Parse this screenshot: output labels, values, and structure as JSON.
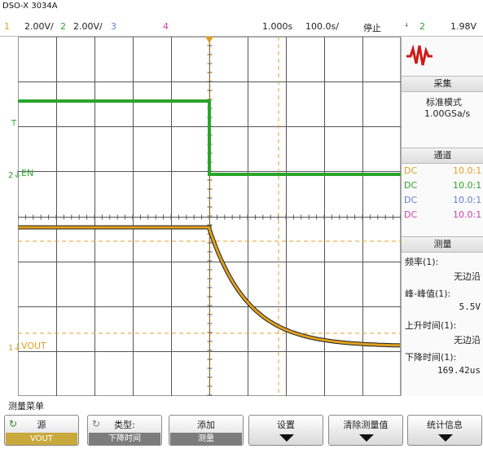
{
  "model": "DSO-X 3034A",
  "channels": [
    {
      "num": "1",
      "scale": "2.00V/",
      "color": "#e0a020"
    },
    {
      "num": "2",
      "scale": "2.00V/",
      "color": "#2aa52a"
    },
    {
      "num": "3",
      "scale": "",
      "color": "#6a7fd0"
    },
    {
      "num": "4",
      "scale": "",
      "color": "#d03db0"
    }
  ],
  "timebase": {
    "delay": "1.000s",
    "scale": "100.0s/"
  },
  "run_status": "停止",
  "trigger": {
    "slope_icon": "trigger-edge-icon",
    "source": "2",
    "level": "1.98V"
  },
  "trace_labels": {
    "en": "EN",
    "vout": "VOUT",
    "ch2_marker": "2",
    "ch1_marker": "1",
    "trig_marker": "T"
  },
  "colors": {
    "ch1": "#e0a020",
    "ch2": "#2aa52a",
    "ch3": "#6a7fd0",
    "ch4": "#d03db0",
    "logo": "#d01818"
  },
  "side_panel": {
    "acquire": {
      "title": "采集",
      "mode": "标准模式",
      "rate": "1.00GSa/s"
    },
    "channels": {
      "title": "通道",
      "rows": [
        {
          "coupling": "DC",
          "ratio": "10.0:1"
        },
        {
          "coupling": "DC",
          "ratio": "10.0:1"
        },
        {
          "coupling": "DC",
          "ratio": "10.0:1"
        },
        {
          "coupling": "DC",
          "ratio": "10.0:1"
        }
      ]
    },
    "measure": {
      "title": "测量",
      "items": [
        {
          "label": "频率(1):",
          "value": "无边沿"
        },
        {
          "label": "峰-峰值(1):",
          "value": "5.5V"
        },
        {
          "label": "上升时间(1):",
          "value": "无边沿"
        },
        {
          "label": "下降时间(1):",
          "value": "169.42us"
        }
      ]
    }
  },
  "menu_title": "测量菜单",
  "softkeys": [
    {
      "line1": "源",
      "line2": "VOUT",
      "icon": "rotate-knob-icon"
    },
    {
      "line1": "类型:",
      "line2": "下降时间",
      "icon": "rotate-knob-icon"
    },
    {
      "line1": "添加",
      "line2": "测量"
    },
    {
      "line1": "设置",
      "line2": ""
    },
    {
      "line1": "清除测量值",
      "line2": ""
    },
    {
      "line1": "统计信息",
      "line2": ""
    }
  ]
}
